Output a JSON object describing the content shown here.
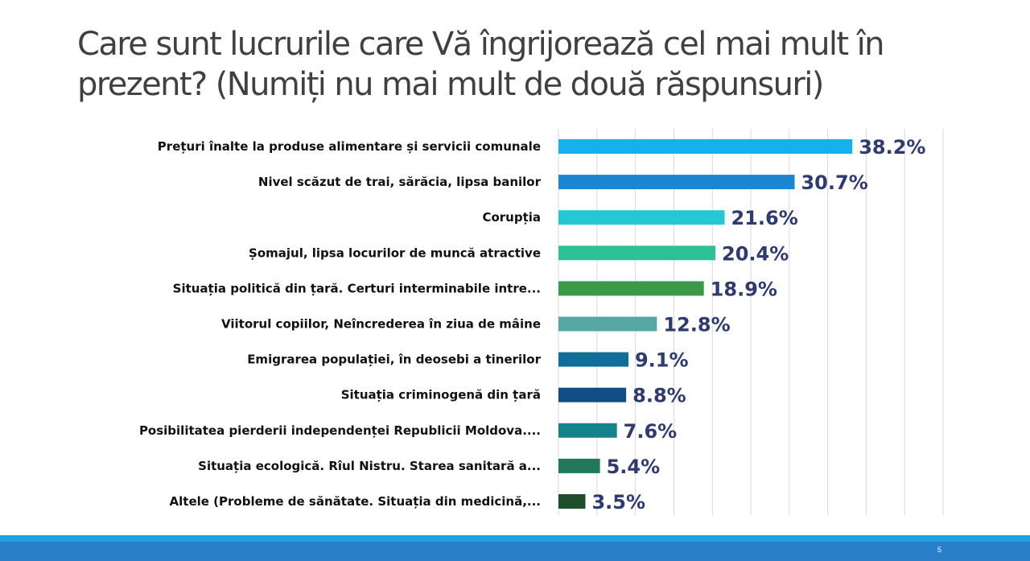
{
  "slide": {
    "title": "Care sunt lucrurile care Vă îngrijorează cel mai mult în prezent? (Numiți nu mai mult de două răspunsuri)",
    "page_number": "5"
  },
  "chart_data": {
    "type": "bar",
    "orientation": "horizontal",
    "categories": [
      "Prețuri înalte la produse alimentare și servicii comunale",
      "Nivel scăzut de trai, sărăcia, lipsa banilor",
      "Corupția",
      "Șomajul, lipsa locurilor de muncă atractive",
      "Situația politică din țară. Certuri interminabile intre...",
      "Viitorul copiilor, Neîncrederea în ziua de mâine",
      "Emigrarea populației, în deosebi a tinerilor",
      "Situația criminogenă din țară",
      "Posibilitatea pierderii independenței Republicii Moldova....",
      "Situația ecologică. Rîul Nistru. Starea sanitară a...",
      "Altele (Probleme de sănătate. Situația din medicină,..."
    ],
    "values": [
      38.2,
      30.7,
      21.6,
      20.4,
      18.9,
      12.8,
      9.1,
      8.8,
      7.6,
      5.4,
      3.5
    ],
    "value_labels": [
      "38.2%",
      "30.7%",
      "21.6%",
      "20.4%",
      "18.9%",
      "12.8%",
      "9.1%",
      "8.8%",
      "7.6%",
      "5.4%",
      "3.5%"
    ],
    "colors": [
      "#17b0ee",
      "#1b86d4",
      "#24c8d4",
      "#2dc195",
      "#3a9a47",
      "#57a7a7",
      "#106e99",
      "#104e86",
      "#14848a",
      "#1f7a5c",
      "#1e4d2b"
    ],
    "xlim": [
      0,
      50
    ],
    "grid": true,
    "title": "",
    "xlabel": "",
    "ylabel": ""
  }
}
